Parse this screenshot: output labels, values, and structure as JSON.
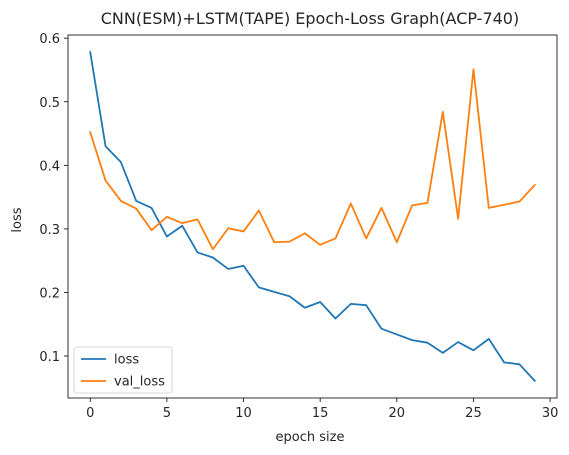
{
  "chart_data": {
    "type": "line",
    "title": "CNN(ESM)+LSTM(TAPE) Epoch-Loss Graph(ACP-740)",
    "xlabel": "epoch size",
    "ylabel": "loss",
    "xlim": [
      -1.45,
      30.45
    ],
    "ylim": [
      0.034,
      0.605
    ],
    "xticks": [
      0,
      5,
      10,
      15,
      20,
      25,
      30
    ],
    "yticks": [
      0.1,
      0.2,
      0.3,
      0.4,
      0.5,
      0.6
    ],
    "xtick_labels": [
      "0",
      "5",
      "10",
      "15",
      "20",
      "25",
      "30"
    ],
    "ytick_labels": [
      "0.1",
      "0.2",
      "0.3",
      "0.4",
      "0.5",
      "0.6"
    ],
    "grid": false,
    "legend_position": "lower-left",
    "x": [
      0,
      1,
      2,
      3,
      4,
      5,
      6,
      7,
      8,
      9,
      10,
      11,
      12,
      13,
      14,
      15,
      16,
      17,
      18,
      19,
      20,
      21,
      22,
      23,
      24,
      25,
      26,
      27,
      28,
      29
    ],
    "series": [
      {
        "name": "loss",
        "color": "#1f77b4",
        "values": [
          0.578,
          0.43,
          0.405,
          0.344,
          0.333,
          0.288,
          0.305,
          0.263,
          0.255,
          0.237,
          0.242,
          0.208,
          0.201,
          0.194,
          0.176,
          0.185,
          0.159,
          0.182,
          0.18,
          0.143,
          0.134,
          0.125,
          0.121,
          0.105,
          0.122,
          0.109,
          0.127,
          0.09,
          0.087,
          0.061
        ]
      },
      {
        "name": "val_loss",
        "color": "#ff7f0e",
        "values": [
          0.452,
          0.376,
          0.344,
          0.332,
          0.298,
          0.319,
          0.309,
          0.315,
          0.268,
          0.301,
          0.296,
          0.329,
          0.279,
          0.28,
          0.293,
          0.275,
          0.285,
          0.34,
          0.285,
          0.333,
          0.279,
          0.337,
          0.341,
          0.484,
          0.316,
          0.551,
          0.333,
          0.338,
          0.343,
          0.369
        ]
      }
    ]
  }
}
